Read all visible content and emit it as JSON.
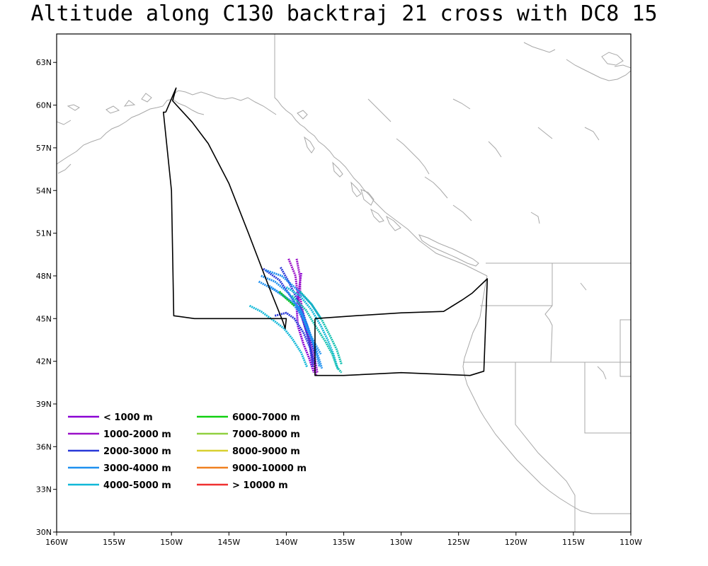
{
  "title": "Altitude along C130 backtraj 21 cross with DC8 15",
  "map": {
    "lon_range": [
      -160,
      -110
    ],
    "lat_range": [
      30,
      65
    ],
    "x_ticks": [
      {
        "lon": -160,
        "label": "160W"
      },
      {
        "lon": -155,
        "label": "155W"
      },
      {
        "lon": -150,
        "label": "150W"
      },
      {
        "lon": -145,
        "label": "145W"
      },
      {
        "lon": -140,
        "label": "140W"
      },
      {
        "lon": -135,
        "label": "135W"
      },
      {
        "lon": -130,
        "label": "130W"
      },
      {
        "lon": -125,
        "label": "125W"
      },
      {
        "lon": -120,
        "label": "120W"
      },
      {
        "lon": -115,
        "label": "115W"
      },
      {
        "lon": -110,
        "label": "110W"
      }
    ],
    "y_ticks": [
      {
        "lat": 30,
        "label": "30N"
      },
      {
        "lat": 33,
        "label": "33N"
      },
      {
        "lat": 36,
        "label": "36N"
      },
      {
        "lat": 39,
        "label": "39N"
      },
      {
        "lat": 42,
        "label": "42N"
      },
      {
        "lat": 45,
        "label": "45N"
      },
      {
        "lat": 48,
        "label": "48N"
      },
      {
        "lat": 51,
        "label": "51N"
      },
      {
        "lat": 54,
        "label": "54N"
      },
      {
        "lat": 57,
        "label": "57N"
      },
      {
        "lat": 60,
        "label": "60N"
      },
      {
        "lat": 63,
        "label": "63N"
      }
    ],
    "coast_color": "#a8a8a8"
  },
  "legend": [
    {
      "label": "< 1000  m",
      "color": "#8a00d4"
    },
    {
      "label": "1000-2000  m",
      "color": "#9a10c8"
    },
    {
      "label": "2000-3000  m",
      "color": "#2838d8"
    },
    {
      "label": "3000-4000  m",
      "color": "#1e90f0"
    },
    {
      "label": "4000-5000  m",
      "color": "#10b8d8"
    },
    {
      "label": "6000-7000  m",
      "color": "#10d010"
    },
    {
      "label": "7000-8000  m",
      "color": "#90d040"
    },
    {
      "label": "8000-9000  m",
      "color": "#d8d030"
    },
    {
      "label": "9000-10000  m",
      "color": "#f08020"
    },
    {
      "label": "> 10000  m",
      "color": "#f03030"
    }
  ],
  "flight_track": [
    [
      -150.5,
      59.5
    ],
    [
      -149.6,
      61.2
    ],
    [
      -149.9,
      60.3
    ],
    [
      -148.2,
      58.8
    ],
    [
      -146.8,
      57.3
    ],
    [
      -145.0,
      54.5
    ],
    [
      -143.3,
      51.0
    ],
    [
      -141.5,
      47.2
    ],
    [
      -140.3,
      44.8
    ],
    [
      -140.1,
      44.3
    ],
    [
      -140.0,
      45.0
    ],
    [
      -143.5,
      45.0
    ],
    [
      -148.0,
      45.0
    ],
    [
      -149.8,
      45.2
    ],
    [
      -150.0,
      54.0
    ],
    [
      -150.7,
      59.5
    ],
    [
      -150.5,
      59.5
    ]
  ],
  "flight_track_2": [
    [
      -137.5,
      45.0
    ],
    [
      -137.5,
      41.0
    ],
    [
      -135.0,
      41.0
    ],
    [
      -130.0,
      41.2
    ],
    [
      -124.0,
      41.0
    ],
    [
      -122.8,
      41.3
    ],
    [
      -122.5,
      47.8
    ],
    [
      -123.8,
      46.8
    ],
    [
      -124.7,
      46.3
    ],
    [
      -126.3,
      45.5
    ],
    [
      -130.0,
      45.4
    ],
    [
      -134.0,
      45.2
    ],
    [
      -137.5,
      45.0
    ]
  ],
  "trajectories": [
    {
      "color": "#8a00d4",
      "points": [
        [
          -138.7,
          48.2
        ],
        [
          -138.9,
          47.0
        ],
        [
          -139.1,
          45.8
        ],
        [
          -139.0,
          44.5
        ],
        [
          -138.5,
          43.2
        ],
        [
          -138.0,
          42.2
        ],
        [
          -137.6,
          41.2
        ]
      ]
    },
    {
      "color": "#9a10c8",
      "points": [
        [
          -139.1,
          49.2
        ],
        [
          -138.8,
          47.9
        ],
        [
          -138.8,
          46.5
        ],
        [
          -138.5,
          45.2
        ],
        [
          -138.1,
          44.0
        ],
        [
          -137.6,
          42.6
        ],
        [
          -137.3,
          41.2
        ]
      ]
    },
    {
      "color": "#9a10c8",
      "points": [
        [
          -139.8,
          49.2
        ],
        [
          -139.2,
          48.0
        ],
        [
          -139.0,
          46.6
        ],
        [
          -138.6,
          45.0
        ],
        [
          -138.0,
          43.5
        ],
        [
          -137.7,
          42.0
        ],
        [
          -137.4,
          41.0
        ]
      ]
    },
    {
      "color": "#2838d8",
      "points": [
        [
          -142.0,
          48.5
        ],
        [
          -140.6,
          47.7
        ],
        [
          -139.4,
          46.3
        ],
        [
          -138.6,
          45.0
        ],
        [
          -138.0,
          43.4
        ],
        [
          -137.7,
          41.6
        ]
      ]
    },
    {
      "color": "#2838d8",
      "points": [
        [
          -140.5,
          48.6
        ],
        [
          -139.8,
          47.6
        ],
        [
          -139.2,
          46.6
        ],
        [
          -138.5,
          45.3
        ],
        [
          -138.0,
          44.0
        ],
        [
          -137.5,
          42.5
        ]
      ]
    },
    {
      "color": "#2838d8",
      "points": [
        [
          -141.0,
          45.2
        ],
        [
          -140.0,
          45.4
        ],
        [
          -139.3,
          45.0
        ],
        [
          -138.5,
          44.0
        ],
        [
          -137.9,
          42.9
        ],
        [
          -137.5,
          41.8
        ]
      ]
    },
    {
      "color": "#1e90f0",
      "points": [
        [
          -142.2,
          48.0
        ],
        [
          -141.0,
          47.6
        ],
        [
          -139.8,
          46.8
        ],
        [
          -138.8,
          45.6
        ],
        [
          -138.2,
          44.3
        ],
        [
          -137.4,
          42.8
        ],
        [
          -136.9,
          41.5
        ]
      ]
    },
    {
      "color": "#1e90f0",
      "points": [
        [
          -142.4,
          47.6
        ],
        [
          -141.0,
          47.0
        ],
        [
          -139.6,
          46.2
        ],
        [
          -138.6,
          45.2
        ],
        [
          -138.0,
          44.0
        ],
        [
          -137.0,
          42.5
        ]
      ]
    },
    {
      "color": "#1e90f0",
      "points": [
        [
          -141.8,
          48.4
        ],
        [
          -140.4,
          48.0
        ],
        [
          -139.0,
          47.0
        ],
        [
          -137.8,
          46.0
        ],
        [
          -137.0,
          45.0
        ]
      ]
    },
    {
      "color": "#1e90f0",
      "points": [
        [
          -141.5,
          47.3
        ],
        [
          -140.2,
          46.6
        ],
        [
          -138.9,
          45.8
        ],
        [
          -138.2,
          44.6
        ],
        [
          -137.6,
          43.2
        ],
        [
          -137.1,
          41.6
        ]
      ]
    },
    {
      "color": "#10b8d8",
      "points": [
        [
          -143.2,
          45.9
        ],
        [
          -142.2,
          45.5
        ],
        [
          -141.0,
          44.8
        ],
        [
          -140.2,
          44.3
        ],
        [
          -139.5,
          43.6
        ],
        [
          -138.7,
          42.6
        ],
        [
          -138.2,
          41.6
        ]
      ]
    },
    {
      "color": "#10b8d8",
      "points": [
        [
          -140.0,
          47.2
        ],
        [
          -138.8,
          46.6
        ],
        [
          -137.8,
          45.6
        ],
        [
          -137.0,
          44.5
        ],
        [
          -136.4,
          43.5
        ],
        [
          -135.9,
          42.5
        ],
        [
          -135.5,
          41.4
        ]
      ]
    },
    {
      "color": "#10c0b0",
      "points": [
        [
          -139.5,
          46.6
        ],
        [
          -138.3,
          45.6
        ],
        [
          -137.4,
          44.4
        ],
        [
          -136.6,
          43.4
        ],
        [
          -136.0,
          42.5
        ],
        [
          -135.6,
          41.6
        ],
        [
          -135.2,
          41.2
        ]
      ]
    },
    {
      "color": "#10c0b0",
      "points": [
        [
          -138.8,
          46.9
        ],
        [
          -137.8,
          46.0
        ],
        [
          -136.9,
          44.9
        ],
        [
          -136.2,
          43.8
        ],
        [
          -135.6,
          42.8
        ],
        [
          -135.2,
          41.8
        ]
      ]
    },
    {
      "color": "#10d010",
      "points": [
        [
          -140.6,
          46.9
        ],
        [
          -140.0,
          46.4
        ],
        [
          -139.3,
          45.9
        ]
      ]
    }
  ]
}
